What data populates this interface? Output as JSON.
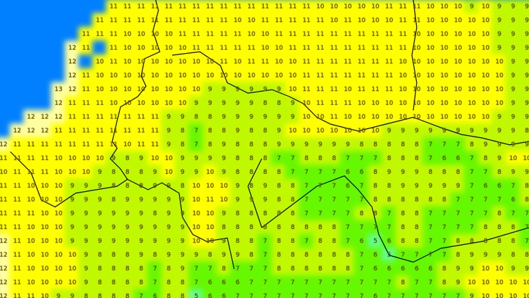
{
  "map": {
    "type": "gridded temperature forecast map",
    "colors": {
      "sea": "#0080ff",
      "12-13": "#ffffa0",
      "10-11": "#ffff00",
      "8-9": "#c0f800",
      "6-7": "#66f800",
      "5": "#60ff90",
      "border": "#000000"
    },
    "grid": [
      [
        null,
        null,
        null,
        null,
        null,
        null,
        null,
        null,
        11,
        11,
        11,
        11,
        11,
        11,
        11,
        11,
        11,
        11,
        11,
        11,
        11,
        11,
        11,
        10,
        10,
        10,
        10,
        10,
        11,
        11,
        11,
        10,
        10,
        10,
        9,
        10,
        9,
        9,
        9
      ],
      [
        null,
        null,
        null,
        null,
        null,
        null,
        null,
        11,
        11,
        11,
        11,
        11,
        11,
        11,
        11,
        11,
        11,
        10,
        10,
        11,
        11,
        11,
        11,
        11,
        10,
        11,
        10,
        10,
        10,
        11,
        11,
        10,
        10,
        10,
        10,
        10,
        9,
        9,
        9
      ],
      [
        null,
        null,
        null,
        null,
        null,
        null,
        11,
        11,
        11,
        10,
        10,
        10,
        10,
        11,
        11,
        11,
        11,
        11,
        10,
        10,
        11,
        11,
        11,
        11,
        11,
        11,
        11,
        11,
        11,
        11,
        10,
        10,
        10,
        10,
        10,
        10,
        9,
        9,
        9
      ],
      [
        null,
        null,
        null,
        null,
        null,
        12,
        11,
        null,
        11,
        10,
        10,
        10,
        10,
        10,
        11,
        11,
        11,
        11,
        11,
        10,
        10,
        11,
        11,
        11,
        11,
        11,
        11,
        11,
        11,
        11,
        10,
        10,
        10,
        10,
        10,
        10,
        9,
        9,
        9
      ],
      [
        null,
        null,
        null,
        null,
        null,
        12,
        null,
        10,
        11,
        10,
        10,
        10,
        10,
        10,
        10,
        10,
        11,
        10,
        11,
        11,
        10,
        10,
        11,
        11,
        11,
        11,
        11,
        11,
        11,
        10,
        10,
        10,
        10,
        10,
        10,
        10,
        10,
        9,
        9
      ],
      [
        null,
        null,
        null,
        null,
        null,
        12,
        11,
        10,
        10,
        10,
        10,
        10,
        10,
        10,
        10,
        10,
        10,
        10,
        10,
        10,
        10,
        10,
        11,
        11,
        11,
        11,
        11,
        11,
        11,
        10,
        10,
        10,
        10,
        10,
        10,
        10,
        10,
        9,
        9
      ],
      [
        null,
        null,
        null,
        null,
        13,
        12,
        11,
        10,
        10,
        10,
        10,
        10,
        10,
        10,
        10,
        9,
        9,
        9,
        9,
        9,
        9,
        10,
        11,
        11,
        11,
        10,
        11,
        11,
        11,
        10,
        10,
        10,
        10,
        10,
        10,
        10,
        10,
        9,
        9
      ],
      [
        null,
        null,
        null,
        null,
        12,
        11,
        11,
        11,
        10,
        10,
        10,
        10,
        10,
        10,
        9,
        9,
        9,
        9,
        9,
        8,
        8,
        9,
        10,
        11,
        11,
        11,
        10,
        10,
        10,
        10,
        10,
        10,
        10,
        10,
        10,
        10,
        10,
        9,
        9
      ],
      [
        null,
        null,
        12,
        12,
        12,
        11,
        11,
        11,
        11,
        11,
        11,
        11,
        9,
        9,
        8,
        8,
        9,
        9,
        9,
        9,
        9,
        9,
        10,
        10,
        11,
        10,
        10,
        10,
        10,
        10,
        10,
        10,
        10,
        10,
        10,
        10,
        9,
        9,
        9
      ],
      [
        null,
        12,
        12,
        12,
        11,
        11,
        11,
        11,
        11,
        11,
        11,
        11,
        9,
        8,
        7,
        8,
        8,
        9,
        8,
        8,
        9,
        10,
        10,
        10,
        10,
        10,
        10,
        10,
        9,
        9,
        9,
        9,
        9,
        9,
        9,
        9,
        9,
        9,
        8
      ],
      [
        12,
        11,
        11,
        11,
        11,
        11,
        11,
        11,
        11,
        10,
        11,
        11,
        9,
        8,
        7,
        8,
        9,
        8,
        8,
        8,
        9,
        9,
        9,
        9,
        9,
        9,
        8,
        8,
        8,
        8,
        8,
        7,
        7,
        7,
        8,
        9,
        9,
        9,
        9
      ],
      [
        11,
        11,
        11,
        11,
        10,
        10,
        10,
        10,
        9,
        8,
        9,
        10,
        10,
        9,
        9,
        9,
        9,
        8,
        8,
        8,
        7,
        7,
        8,
        8,
        8,
        7,
        7,
        7,
        8,
        8,
        8,
        7,
        6,
        6,
        7,
        8,
        9,
        10,
        10
      ],
      [
        10,
        11,
        11,
        11,
        10,
        10,
        10,
        9,
        8,
        8,
        8,
        9,
        10,
        9,
        9,
        10,
        9,
        8,
        8,
        8,
        8,
        7,
        7,
        7,
        7,
        6,
        6,
        8,
        9,
        9,
        9,
        8,
        8,
        8,
        7,
        7,
        8,
        9,
        9
      ],
      [
        11,
        11,
        10,
        10,
        10,
        9,
        9,
        9,
        8,
        8,
        8,
        9,
        9,
        8,
        10,
        10,
        10,
        9,
        8,
        9,
        8,
        8,
        7,
        7,
        7,
        6,
        7,
        8,
        8,
        9,
        9,
        9,
        9,
        9,
        7,
        6,
        6,
        7,
        8
      ],
      [
        11,
        11,
        10,
        10,
        10,
        9,
        9,
        9,
        8,
        9,
        9,
        9,
        9,
        9,
        10,
        11,
        10,
        9,
        9,
        9,
        8,
        8,
        7,
        7,
        7,
        7,
        7,
        8,
        8,
        8,
        8,
        8,
        8,
        7,
        7,
        7,
        7,
        6,
        8
      ],
      [
        11,
        11,
        11,
        10,
        10,
        9,
        9,
        9,
        9,
        9,
        9,
        8,
        9,
        9,
        10,
        10,
        9,
        8,
        8,
        8,
        8,
        8,
        7,
        7,
        7,
        7,
        8,
        8,
        7,
        8,
        8,
        7,
        7,
        7,
        7,
        7,
        8,
        7,
        7
      ],
      [
        11,
        11,
        10,
        10,
        10,
        9,
        9,
        9,
        9,
        9,
        9,
        9,
        9,
        9,
        10,
        10,
        8,
        8,
        8,
        8,
        8,
        8,
        8,
        8,
        8,
        7,
        7,
        7,
        7,
        8,
        8,
        7,
        7,
        7,
        7,
        8,
        8,
        8,
        7
      ],
      [
        12,
        11,
        10,
        10,
        10,
        9,
        9,
        9,
        9,
        9,
        9,
        9,
        9,
        9,
        10,
        10,
        9,
        8,
        8,
        7,
        8,
        8,
        7,
        8,
        8,
        7,
        6,
        5,
        6,
        8,
        8,
        7,
        7,
        8,
        8,
        8,
        8,
        8,
        7
      ],
      [
        12,
        11,
        10,
        10,
        10,
        10,
        9,
        8,
        8,
        8,
        9,
        8,
        9,
        9,
        9,
        8,
        9,
        9,
        8,
        7,
        8,
        8,
        8,
        8,
        8,
        8,
        7,
        6,
        5,
        7,
        7,
        7,
        7,
        8,
        9,
        9,
        9,
        8,
        8
      ],
      [
        12,
        11,
        10,
        10,
        10,
        10,
        9,
        8,
        8,
        8,
        8,
        7,
        8,
        9,
        7,
        7,
        8,
        7,
        7,
        7,
        8,
        8,
        8,
        8,
        8,
        8,
        7,
        6,
        6,
        6,
        6,
        6,
        8,
        9,
        9,
        10,
        10,
        9,
        9
      ],
      [
        12,
        11,
        10,
        10,
        10,
        10,
        9,
        8,
        8,
        8,
        8,
        7,
        8,
        8,
        7,
        6,
        6,
        6,
        7,
        7,
        7,
        7,
        7,
        7,
        7,
        7,
        7,
        7,
        7,
        8,
        7,
        7,
        8,
        9,
        10,
        10,
        10,
        10,
        10
      ],
      [
        12,
        11,
        11,
        10,
        9,
        9,
        8,
        8,
        8,
        8,
        7,
        6,
        8,
        8,
        5,
        6,
        6,
        7,
        7,
        7,
        7,
        7,
        7,
        7,
        7,
        7,
        7,
        6,
        7,
        7,
        7,
        7,
        7,
        7,
        9,
        10,
        10,
        10,
        10
      ]
    ]
  }
}
